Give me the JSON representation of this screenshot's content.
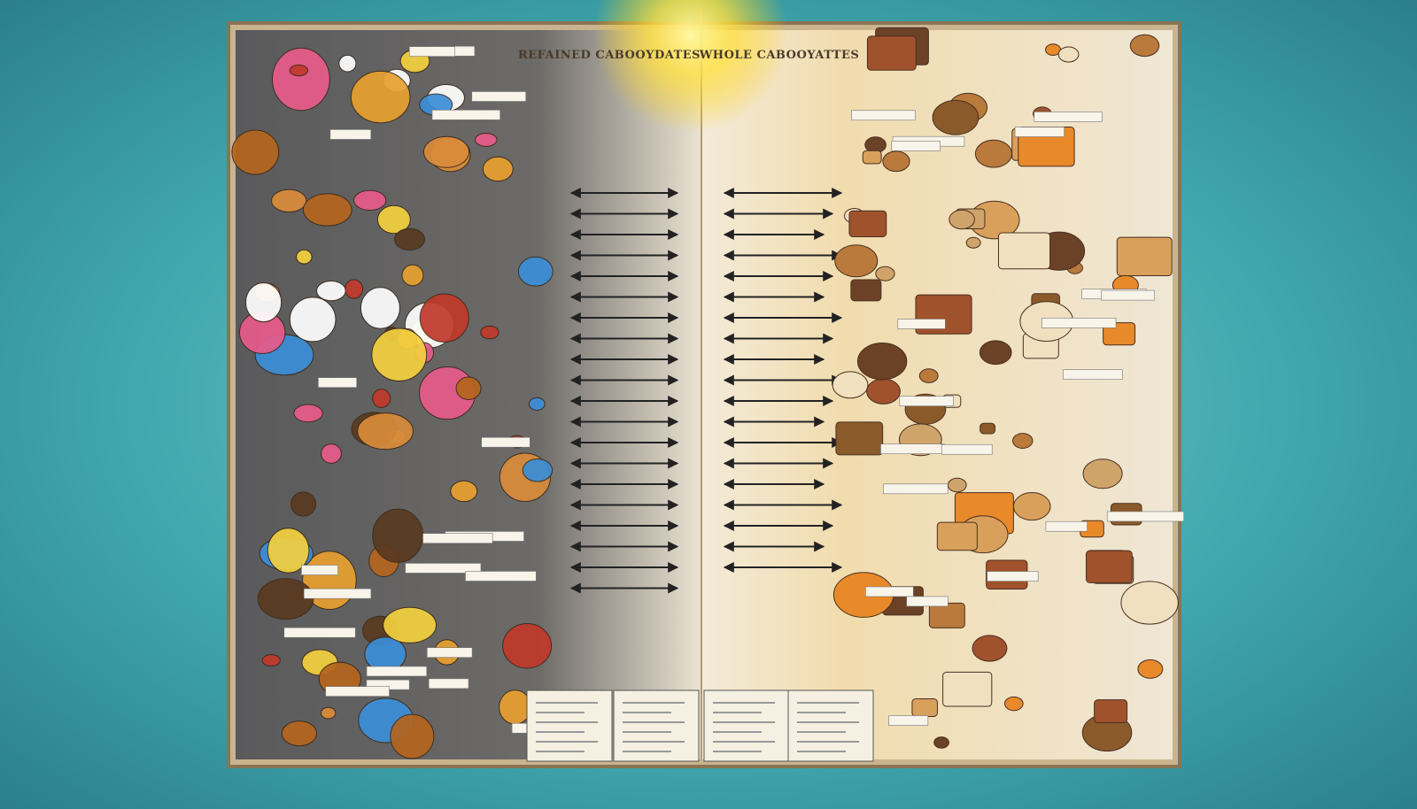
{
  "header": {
    "left_title": "REFAINED CABOOYDATES",
    "right_title": "WHOLE CABOOYATTES"
  }
}
